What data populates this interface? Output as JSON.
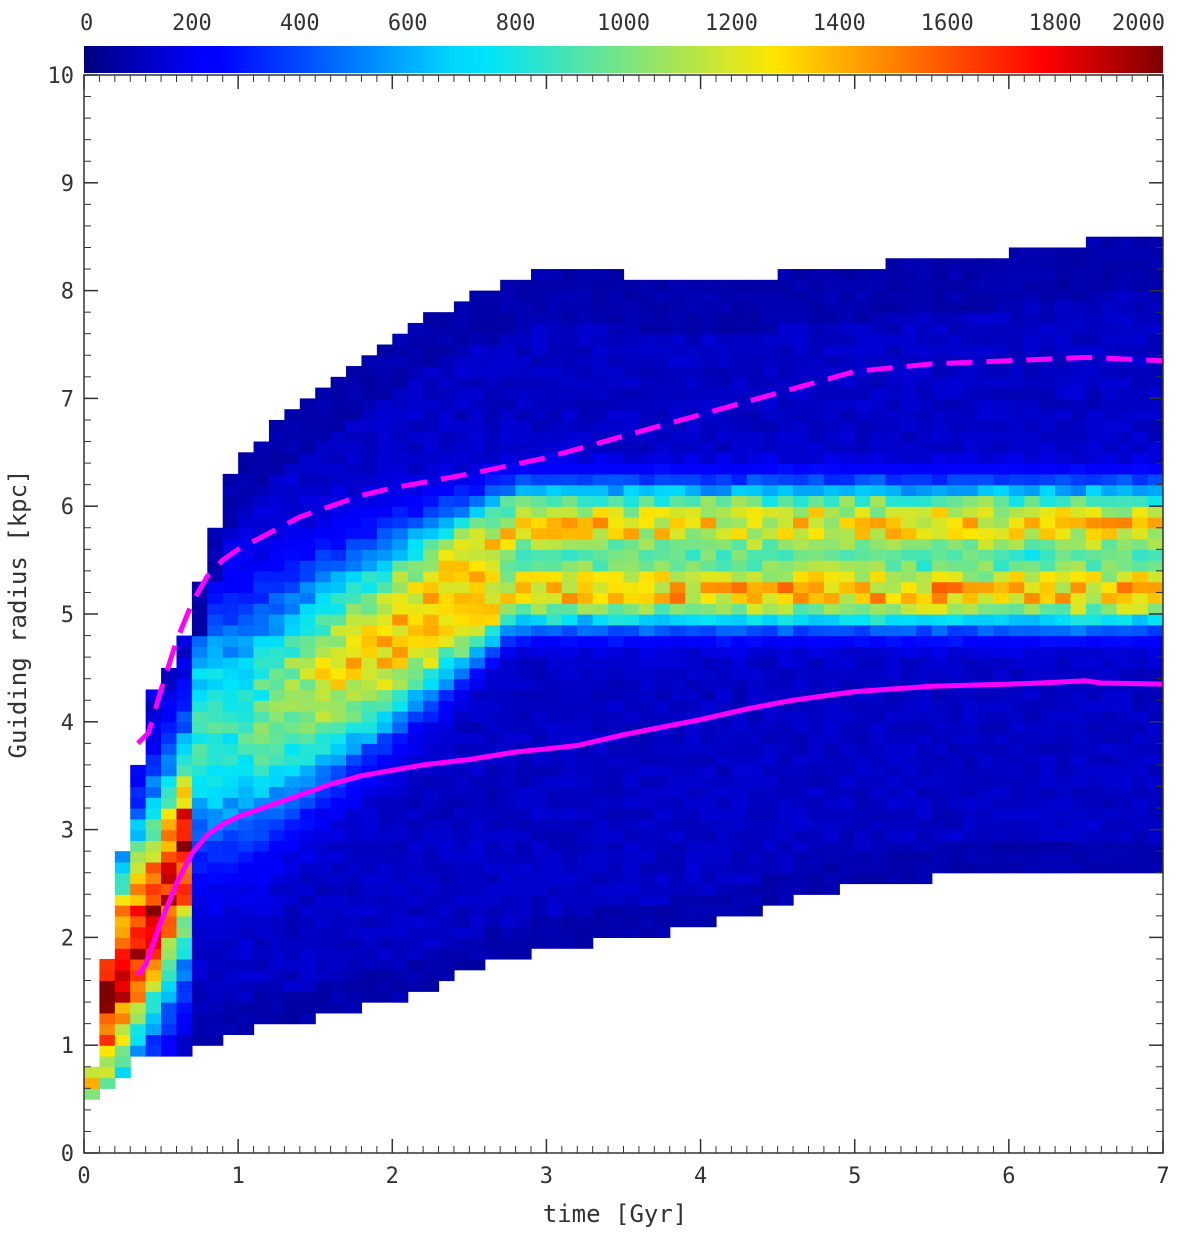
{
  "chart_data": {
    "type": "heatmap",
    "title": "",
    "xlabel": "time [Gyr]",
    "ylabel": "Guiding radius [kpc]",
    "xlim": [
      0,
      7
    ],
    "ylim": [
      0,
      10
    ],
    "x_ticks": [
      "0",
      "1",
      "2",
      "3",
      "4",
      "5",
      "6",
      "7"
    ],
    "y_ticks": [
      "0",
      "1",
      "2",
      "3",
      "4",
      "5",
      "6",
      "7",
      "8",
      "9",
      "10"
    ],
    "colorbar": {
      "range": [
        0,
        2000
      ],
      "ticks": [
        "0",
        "200",
        "400",
        "600",
        "800",
        "1000",
        "1200",
        "1400",
        "1600",
        "1800",
        "2000"
      ],
      "colormap": "jet",
      "placement": "top"
    },
    "bin_size": {
      "time_gyr": 0.1,
      "radius_kpc": 0.1
    },
    "density_model": {
      "ridges": [
        {
          "time_start": 2.0,
          "radius": 5.85,
          "width": 0.33,
          "peak": 1250
        },
        {
          "time_start": 2.0,
          "radius": 5.2,
          "width": 0.3,
          "peak": 1300
        }
      ],
      "early_peak": {
        "time": 0.15,
        "radius": 1.35,
        "value": 2000
      }
    },
    "upper_envelope": {
      "x": [
        0.0,
        0.1,
        0.2,
        0.3,
        0.4,
        0.5,
        0.6,
        0.7,
        0.8,
        0.9,
        1.0,
        1.2,
        1.4,
        1.6,
        1.8,
        2.0,
        2.3,
        2.6,
        3.0,
        3.3,
        3.6,
        4.0,
        4.5,
        5.0,
        5.5,
        6.0,
        6.5,
        7.0
      ],
      "y": [
        0.6,
        1.0,
        2.7,
        3.0,
        4.2,
        4.5,
        4.5,
        5.0,
        5.5,
        6.1,
        6.4,
        6.7,
        6.95,
        7.15,
        7.35,
        7.55,
        7.8,
        8.0,
        8.2,
        8.25,
        8.1,
        8.05,
        8.15,
        8.2,
        8.3,
        8.35,
        8.45,
        8.45
      ]
    },
    "lower_envelope": {
      "x": [
        0.0,
        0.2,
        0.4,
        0.6,
        0.8,
        1.0,
        1.2,
        1.5,
        2.0,
        2.5,
        3.0,
        3.5,
        4.0,
        4.5,
        5.0,
        5.5,
        6.0,
        6.5,
        7.0
      ],
      "y": [
        0.5,
        0.7,
        0.9,
        0.9,
        1.0,
        1.1,
        1.2,
        1.25,
        1.4,
        1.7,
        1.9,
        2.0,
        2.1,
        2.3,
        2.5,
        2.55,
        2.6,
        2.6,
        2.55
      ]
    },
    "series": [
      {
        "style": "solid",
        "color": "#ff00ff",
        "x": [
          0.35,
          0.4,
          0.5,
          0.6,
          0.7,
          0.8,
          0.9,
          1.0,
          1.2,
          1.4,
          1.6,
          1.8,
          2.0,
          2.2,
          2.5,
          2.8,
          3.0,
          3.2,
          3.5,
          4.0,
          4.3,
          4.6,
          5.0,
          5.2,
          5.5,
          6.0,
          6.2,
          6.5,
          6.6,
          7.0
        ],
        "y": [
          1.65,
          1.75,
          2.15,
          2.5,
          2.78,
          2.95,
          3.05,
          3.12,
          3.22,
          3.32,
          3.42,
          3.5,
          3.55,
          3.6,
          3.65,
          3.72,
          3.75,
          3.78,
          3.88,
          4.02,
          4.12,
          4.2,
          4.28,
          4.3,
          4.33,
          4.35,
          4.36,
          4.38,
          4.36,
          4.35
        ]
      },
      {
        "style": "dashed",
        "color": "#ff00ff",
        "x": [
          0.35,
          0.42,
          0.5,
          0.6,
          0.7,
          0.8,
          0.9,
          1.0,
          1.2,
          1.4,
          1.6,
          1.8,
          2.0,
          2.2,
          2.5,
          3.0,
          3.5,
          4.0,
          4.5,
          5.0,
          5.5,
          6.0,
          6.5,
          7.0
        ],
        "y": [
          3.8,
          3.9,
          4.3,
          4.75,
          5.1,
          5.35,
          5.5,
          5.6,
          5.75,
          5.9,
          6.0,
          6.1,
          6.17,
          6.22,
          6.3,
          6.45,
          6.65,
          6.85,
          7.05,
          7.25,
          7.32,
          7.35,
          7.38,
          7.35
        ]
      }
    ]
  }
}
